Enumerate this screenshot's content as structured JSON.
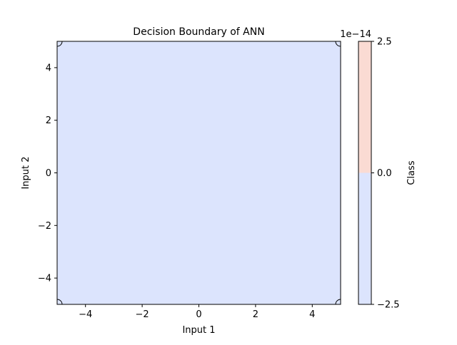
{
  "chart_data": {
    "type": "heatmap",
    "title": "Decision Boundary of ANN",
    "xlabel": "Input 1",
    "ylabel": "Input 2",
    "xlim": [
      -5,
      5
    ],
    "ylim": [
      -5,
      5
    ],
    "xticks": [
      {
        "value": -4,
        "label": "−4"
      },
      {
        "value": -2,
        "label": "−2"
      },
      {
        "value": 0,
        "label": "0"
      },
      {
        "value": 2,
        "label": "2"
      },
      {
        "value": 4,
        "label": "4"
      }
    ],
    "yticks": [
      {
        "value": -4,
        "label": "−4"
      },
      {
        "value": -2,
        "label": "−2"
      },
      {
        "value": 0,
        "label": "0"
      },
      {
        "value": 2,
        "label": "2"
      },
      {
        "value": 4,
        "label": "4"
      }
    ],
    "region_color": "#dce4fd",
    "decision_region": "entire grid predicted as the lower class",
    "grid": false,
    "colorbar": {
      "label": "Class",
      "scale_note": "1e−14",
      "range": [
        -2.5,
        2.5
      ],
      "ticks": [
        {
          "value": -2.5,
          "label": "−2.5"
        },
        {
          "value": 0,
          "label": "0.0"
        },
        {
          "value": 2.5,
          "label": "2.5"
        }
      ],
      "bands": [
        {
          "from": -2.5,
          "to": 0,
          "color": "#dce4fd"
        },
        {
          "from": 0,
          "to": 2.5,
          "color": "#fadbd3"
        }
      ],
      "placement": "right"
    }
  }
}
